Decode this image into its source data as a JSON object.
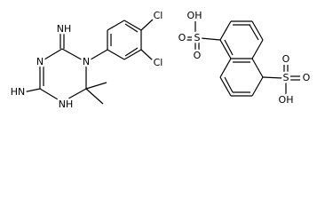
{
  "molecules": [
    {
      "atoms": [
        "NH",
        "N",
        "N",
        "HN",
        "NH",
        "Cl",
        "Cl"
      ]
    },
    {
      "atoms": [
        "OH",
        "S",
        "O",
        "O",
        "O",
        "S",
        "O",
        "OH"
      ]
    }
  ]
}
